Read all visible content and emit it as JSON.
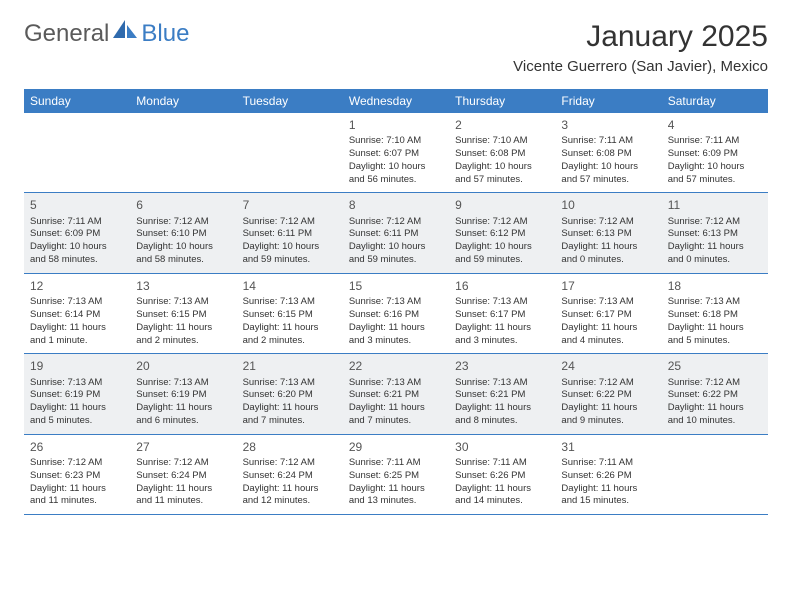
{
  "brand": {
    "general": "General",
    "blue": "Blue"
  },
  "title": {
    "month_year": "January 2025",
    "location": "Vicente Guerrero (San Javier), Mexico"
  },
  "colors": {
    "header_bg": "#3b7dc4",
    "header_fg": "#ffffff",
    "shaded_bg": "#eef0f2",
    "text": "#333333",
    "divider": "#3b7dc4"
  },
  "day_names": [
    "Sunday",
    "Monday",
    "Tuesday",
    "Wednesday",
    "Thursday",
    "Friday",
    "Saturday"
  ],
  "weeks": [
    [
      {
        "date": "",
        "shaded": false,
        "empty": true
      },
      {
        "date": "",
        "shaded": false,
        "empty": true
      },
      {
        "date": "",
        "shaded": false,
        "empty": true
      },
      {
        "date": "1",
        "shaded": false,
        "sunrise": "Sunrise: 7:10 AM",
        "sunset": "Sunset: 6:07 PM",
        "daylight": "Daylight: 10 hours and 56 minutes."
      },
      {
        "date": "2",
        "shaded": false,
        "sunrise": "Sunrise: 7:10 AM",
        "sunset": "Sunset: 6:08 PM",
        "daylight": "Daylight: 10 hours and 57 minutes."
      },
      {
        "date": "3",
        "shaded": false,
        "sunrise": "Sunrise: 7:11 AM",
        "sunset": "Sunset: 6:08 PM",
        "daylight": "Daylight: 10 hours and 57 minutes."
      },
      {
        "date": "4",
        "shaded": false,
        "sunrise": "Sunrise: 7:11 AM",
        "sunset": "Sunset: 6:09 PM",
        "daylight": "Daylight: 10 hours and 57 minutes."
      }
    ],
    [
      {
        "date": "5",
        "shaded": true,
        "sunrise": "Sunrise: 7:11 AM",
        "sunset": "Sunset: 6:09 PM",
        "daylight": "Daylight: 10 hours and 58 minutes."
      },
      {
        "date": "6",
        "shaded": true,
        "sunrise": "Sunrise: 7:12 AM",
        "sunset": "Sunset: 6:10 PM",
        "daylight": "Daylight: 10 hours and 58 minutes."
      },
      {
        "date": "7",
        "shaded": true,
        "sunrise": "Sunrise: 7:12 AM",
        "sunset": "Sunset: 6:11 PM",
        "daylight": "Daylight: 10 hours and 59 minutes."
      },
      {
        "date": "8",
        "shaded": true,
        "sunrise": "Sunrise: 7:12 AM",
        "sunset": "Sunset: 6:11 PM",
        "daylight": "Daylight: 10 hours and 59 minutes."
      },
      {
        "date": "9",
        "shaded": true,
        "sunrise": "Sunrise: 7:12 AM",
        "sunset": "Sunset: 6:12 PM",
        "daylight": "Daylight: 10 hours and 59 minutes."
      },
      {
        "date": "10",
        "shaded": true,
        "sunrise": "Sunrise: 7:12 AM",
        "sunset": "Sunset: 6:13 PM",
        "daylight": "Daylight: 11 hours and 0 minutes."
      },
      {
        "date": "11",
        "shaded": true,
        "sunrise": "Sunrise: 7:12 AM",
        "sunset": "Sunset: 6:13 PM",
        "daylight": "Daylight: 11 hours and 0 minutes."
      }
    ],
    [
      {
        "date": "12",
        "shaded": false,
        "sunrise": "Sunrise: 7:13 AM",
        "sunset": "Sunset: 6:14 PM",
        "daylight": "Daylight: 11 hours and 1 minute."
      },
      {
        "date": "13",
        "shaded": false,
        "sunrise": "Sunrise: 7:13 AM",
        "sunset": "Sunset: 6:15 PM",
        "daylight": "Daylight: 11 hours and 2 minutes."
      },
      {
        "date": "14",
        "shaded": false,
        "sunrise": "Sunrise: 7:13 AM",
        "sunset": "Sunset: 6:15 PM",
        "daylight": "Daylight: 11 hours and 2 minutes."
      },
      {
        "date": "15",
        "shaded": false,
        "sunrise": "Sunrise: 7:13 AM",
        "sunset": "Sunset: 6:16 PM",
        "daylight": "Daylight: 11 hours and 3 minutes."
      },
      {
        "date": "16",
        "shaded": false,
        "sunrise": "Sunrise: 7:13 AM",
        "sunset": "Sunset: 6:17 PM",
        "daylight": "Daylight: 11 hours and 3 minutes."
      },
      {
        "date": "17",
        "shaded": false,
        "sunrise": "Sunrise: 7:13 AM",
        "sunset": "Sunset: 6:17 PM",
        "daylight": "Daylight: 11 hours and 4 minutes."
      },
      {
        "date": "18",
        "shaded": false,
        "sunrise": "Sunrise: 7:13 AM",
        "sunset": "Sunset: 6:18 PM",
        "daylight": "Daylight: 11 hours and 5 minutes."
      }
    ],
    [
      {
        "date": "19",
        "shaded": true,
        "sunrise": "Sunrise: 7:13 AM",
        "sunset": "Sunset: 6:19 PM",
        "daylight": "Daylight: 11 hours and 5 minutes."
      },
      {
        "date": "20",
        "shaded": true,
        "sunrise": "Sunrise: 7:13 AM",
        "sunset": "Sunset: 6:19 PM",
        "daylight": "Daylight: 11 hours and 6 minutes."
      },
      {
        "date": "21",
        "shaded": true,
        "sunrise": "Sunrise: 7:13 AM",
        "sunset": "Sunset: 6:20 PM",
        "daylight": "Daylight: 11 hours and 7 minutes."
      },
      {
        "date": "22",
        "shaded": true,
        "sunrise": "Sunrise: 7:13 AM",
        "sunset": "Sunset: 6:21 PM",
        "daylight": "Daylight: 11 hours and 7 minutes."
      },
      {
        "date": "23",
        "shaded": true,
        "sunrise": "Sunrise: 7:13 AM",
        "sunset": "Sunset: 6:21 PM",
        "daylight": "Daylight: 11 hours and 8 minutes."
      },
      {
        "date": "24",
        "shaded": true,
        "sunrise": "Sunrise: 7:12 AM",
        "sunset": "Sunset: 6:22 PM",
        "daylight": "Daylight: 11 hours and 9 minutes."
      },
      {
        "date": "25",
        "shaded": true,
        "sunrise": "Sunrise: 7:12 AM",
        "sunset": "Sunset: 6:22 PM",
        "daylight": "Daylight: 11 hours and 10 minutes."
      }
    ],
    [
      {
        "date": "26",
        "shaded": false,
        "sunrise": "Sunrise: 7:12 AM",
        "sunset": "Sunset: 6:23 PM",
        "daylight": "Daylight: 11 hours and 11 minutes."
      },
      {
        "date": "27",
        "shaded": false,
        "sunrise": "Sunrise: 7:12 AM",
        "sunset": "Sunset: 6:24 PM",
        "daylight": "Daylight: 11 hours and 11 minutes."
      },
      {
        "date": "28",
        "shaded": false,
        "sunrise": "Sunrise: 7:12 AM",
        "sunset": "Sunset: 6:24 PM",
        "daylight": "Daylight: 11 hours and 12 minutes."
      },
      {
        "date": "29",
        "shaded": false,
        "sunrise": "Sunrise: 7:11 AM",
        "sunset": "Sunset: 6:25 PM",
        "daylight": "Daylight: 11 hours and 13 minutes."
      },
      {
        "date": "30",
        "shaded": false,
        "sunrise": "Sunrise: 7:11 AM",
        "sunset": "Sunset: 6:26 PM",
        "daylight": "Daylight: 11 hours and 14 minutes."
      },
      {
        "date": "31",
        "shaded": false,
        "sunrise": "Sunrise: 7:11 AM",
        "sunset": "Sunset: 6:26 PM",
        "daylight": "Daylight: 11 hours and 15 minutes."
      },
      {
        "date": "",
        "shaded": false,
        "empty": true
      }
    ]
  ]
}
